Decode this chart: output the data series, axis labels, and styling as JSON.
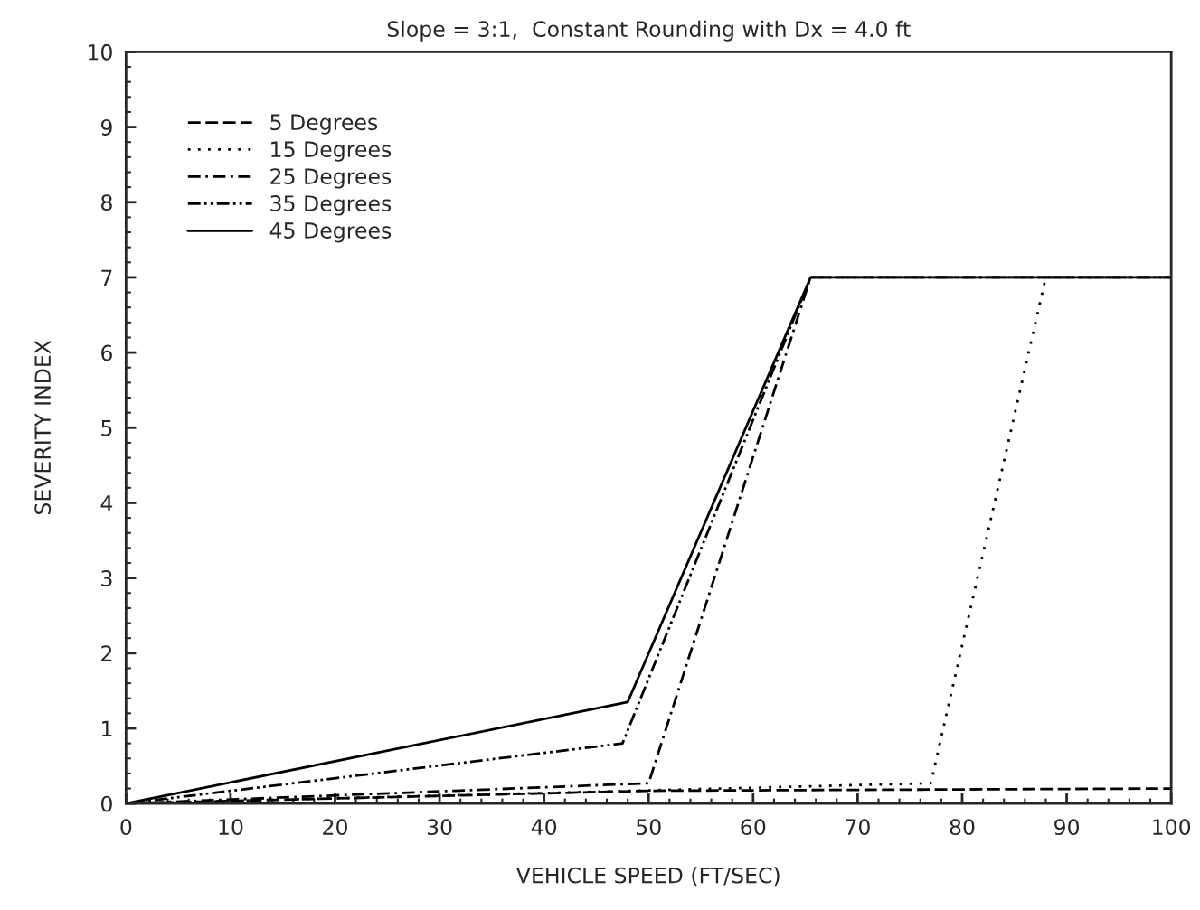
{
  "chart_data": {
    "type": "line",
    "title": "Slope = 3:1,  Constant Rounding with Dx = 4.0 ft",
    "xlabel": "VEHICLE SPEED (FT/SEC)",
    "ylabel": "SEVERITY INDEX",
    "xlim": [
      0,
      100
    ],
    "xticks": [
      0,
      10,
      20,
      30,
      40,
      50,
      60,
      70,
      80,
      90,
      100
    ],
    "ylim": [
      0,
      10
    ],
    "yticks": [
      0,
      1,
      2,
      3,
      4,
      5,
      6,
      7,
      8,
      9,
      10
    ],
    "grid": false,
    "legend": "top left",
    "marker": "none",
    "series": [
      {
        "name": "5 Degrees",
        "color": "#000000",
        "line_style": "dashed",
        "x": [
          0,
          50,
          100
        ],
        "values": [
          0,
          0.17,
          0.2
        ]
      },
      {
        "name": "15 Degrees",
        "color": "#000000",
        "line_style": "dotted",
        "x": [
          0,
          77,
          88,
          100
        ],
        "values": [
          0,
          0.27,
          7,
          7
        ]
      },
      {
        "name": "25 Degrees",
        "color": "#000000",
        "line_style": "dashdot",
        "x": [
          0,
          50,
          65.5,
          100
        ],
        "values": [
          0,
          0.27,
          7,
          7
        ]
      },
      {
        "name": "35 Degrees",
        "color": "#000000",
        "line_style": "dashdotdot",
        "x": [
          0,
          47.5,
          65.5,
          100
        ],
        "values": [
          0,
          0.8,
          7,
          7
        ]
      },
      {
        "name": "45 Degrees",
        "color": "#000000",
        "line_style": "solid",
        "x": [
          0,
          48,
          65.5,
          100
        ],
        "values": [
          0,
          1.35,
          7,
          7
        ]
      }
    ]
  }
}
